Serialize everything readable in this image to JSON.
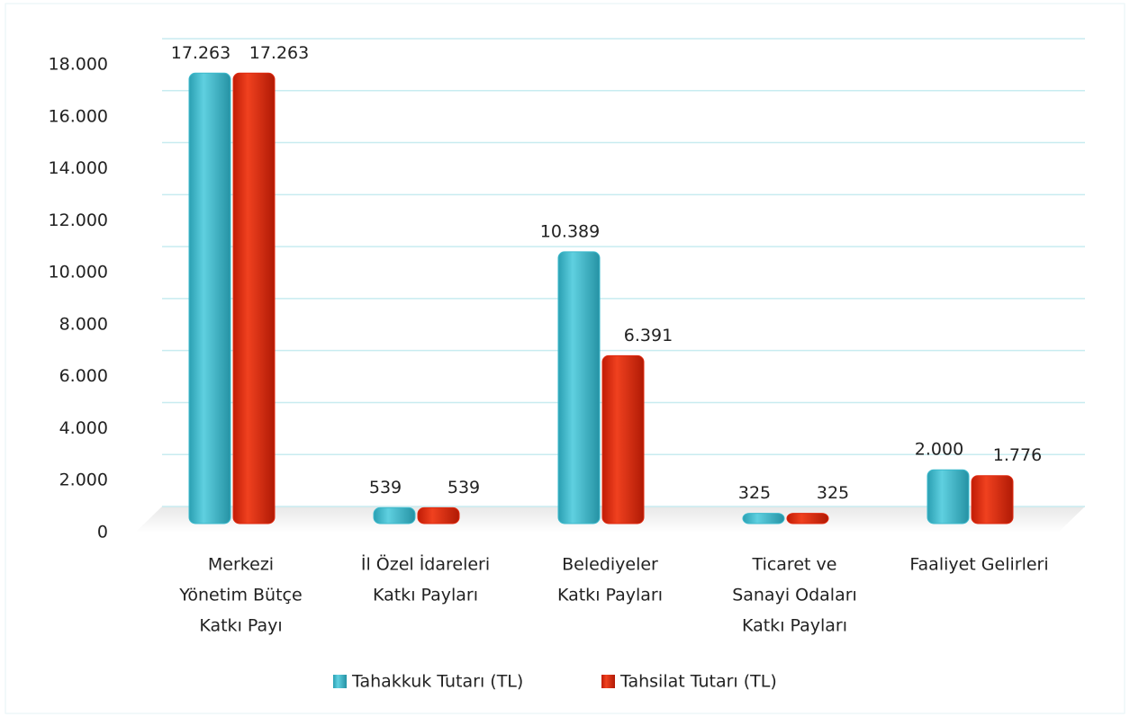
{
  "chart_data": {
    "type": "bar",
    "categories": [
      [
        "Merkezi",
        "Yönetim Bütçe",
        "Katkı Payı"
      ],
      [
        "İl Özel İdareleri",
        "Katkı Payları"
      ],
      [
        "Belediyeler",
        "Katkı Payları"
      ],
      [
        "Ticaret ve",
        "Sanayi Odaları",
        "Katkı Payları"
      ],
      [
        "Faaliyet Gelirleri"
      ]
    ],
    "series": [
      {
        "name": "Tahakkuk Tutarı (TL)",
        "color": "#3bb9cc",
        "values": [
          17263,
          539,
          10389,
          325,
          2000
        ],
        "value_labels": [
          "17.263",
          "539",
          "10.389",
          "325",
          "2.000"
        ]
      },
      {
        "name": "Tahsilat Tutarı (TL)",
        "color": "#e0280e",
        "values": [
          17263,
          539,
          6391,
          325,
          1776
        ],
        "value_labels": [
          "17.263",
          "539",
          "6.391",
          "325",
          "1.776"
        ]
      }
    ],
    "ylim": [
      0,
      18000
    ],
    "yticks": [
      0,
      {
        "value": 2000,
        "label": "2.000"
      },
      {
        "value": 4000,
        "label": "4.000"
      },
      {
        "value": 6000,
        "label": "6.000"
      },
      {
        "value": 8000,
        "label": "8.000"
      },
      {
        "value": 10000,
        "label": "10.000"
      },
      {
        "value": 12000,
        "label": "12.000"
      },
      {
        "value": 14000,
        "label": "14.000"
      },
      {
        "value": 16000,
        "label": "16.000"
      },
      {
        "value": 18000,
        "label": "18.000"
      }
    ],
    "grid": true,
    "legend": "bottom"
  }
}
